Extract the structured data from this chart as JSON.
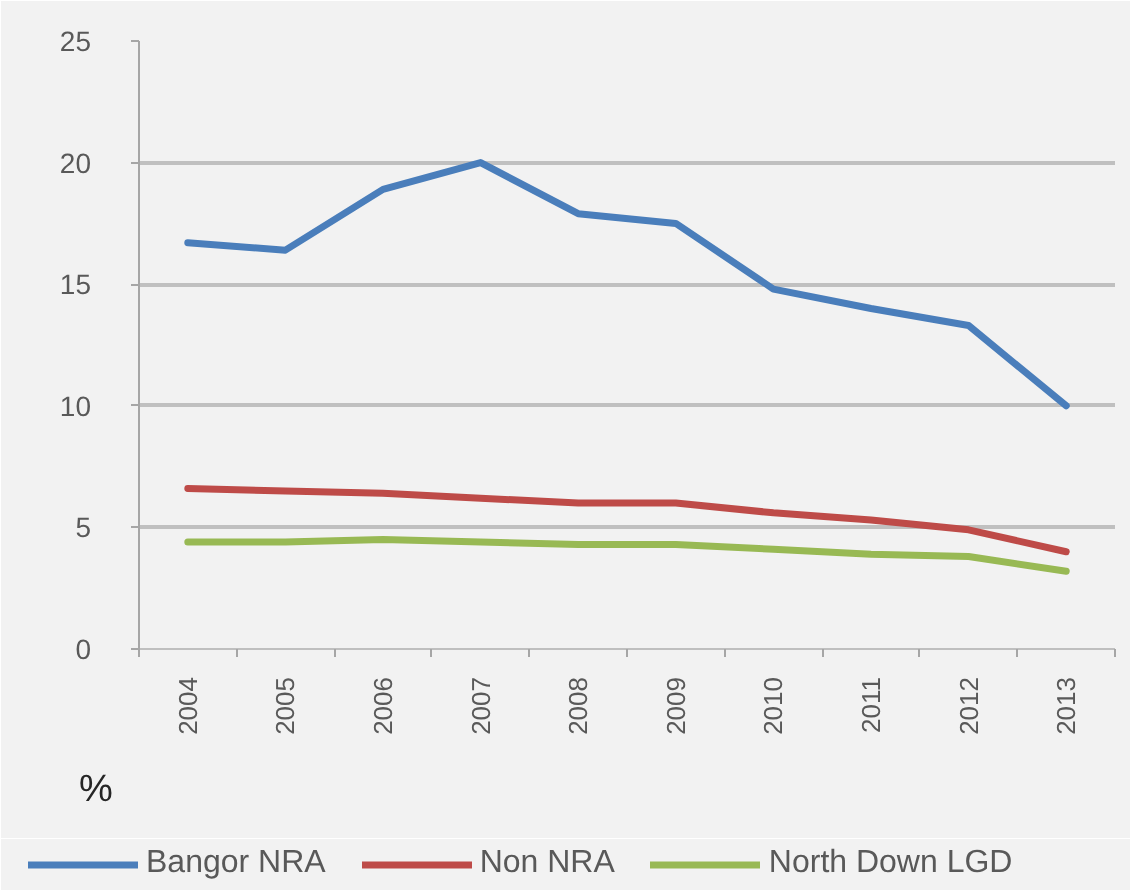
{
  "chart_data": {
    "type": "line",
    "ylabel": "%",
    "categories": [
      "2004",
      "2005",
      "2006",
      "2007",
      "2008",
      "2009",
      "2010",
      "2011",
      "2012",
      "2013"
    ],
    "series": [
      {
        "name": "Bangor NRA",
        "color": "#4a7ebb",
        "values": [
          16.7,
          16.4,
          18.9,
          20.0,
          17.9,
          17.5,
          14.8,
          14.0,
          13.3,
          10.0
        ]
      },
      {
        "name": "Non NRA",
        "color": "#be4b48",
        "values": [
          6.6,
          6.5,
          6.4,
          6.2,
          6.0,
          6.0,
          5.6,
          5.3,
          4.9,
          4.0
        ]
      },
      {
        "name": "North Down LGD",
        "color": "#98b954",
        "values": [
          4.4,
          4.4,
          4.5,
          4.4,
          4.3,
          4.3,
          4.1,
          3.9,
          3.8,
          3.2
        ]
      }
    ],
    "ylim": [
      0,
      25
    ],
    "yticks": [
      0,
      5,
      10,
      15,
      20,
      25
    ],
    "grid": "y",
    "legend": "bottom",
    "marker": "none",
    "line_style": "solid"
  }
}
